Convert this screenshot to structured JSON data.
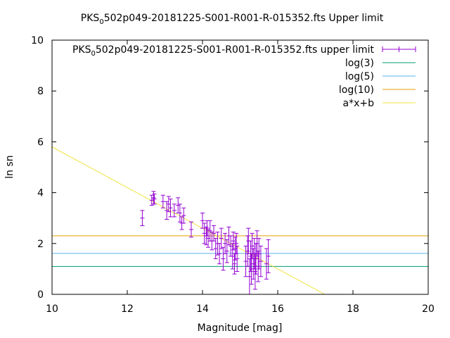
{
  "chart_data": {
    "type": "scatter",
    "title": {
      "main": "PKS",
      "sub": "0",
      "rest": "502p049-20181225-S001-R001-R-015352.fts Upper limit"
    },
    "xlabel": "Magnitude [mag]",
    "ylabel": "ln sn",
    "xlim": [
      10,
      20
    ],
    "ylim": [
      0,
      10
    ],
    "xticks": [
      "10",
      "12",
      "14",
      "16",
      "18",
      "20"
    ],
    "yticks": [
      "0",
      "2",
      "4",
      "6",
      "8",
      "10"
    ],
    "grid": false,
    "legend_position": "top-right",
    "colors": {
      "data": "#9400d3",
      "log3": "#009e73",
      "log5": "#56b4e9",
      "log10": "#e69f00",
      "fit": "#f0e442"
    },
    "series": [
      {
        "name": "upper limit",
        "legend": {
          "main": "PKS",
          "sub": "0",
          "rest": "502p049-20181225-S001-R001-R-015352.fts upper limit"
        },
        "kind": "errorbars",
        "points": [
          [
            12.4,
            3.0,
            0.3
          ],
          [
            12.65,
            3.7,
            0.2
          ],
          [
            12.7,
            3.8,
            0.25
          ],
          [
            12.72,
            3.75,
            0.2
          ],
          [
            12.95,
            3.65,
            0.25
          ],
          [
            13.05,
            3.3,
            0.35
          ],
          [
            13.1,
            3.55,
            0.3
          ],
          [
            13.15,
            3.4,
            0.35
          ],
          [
            13.25,
            3.3,
            0.25
          ],
          [
            13.35,
            3.5,
            0.3
          ],
          [
            13.4,
            3.2,
            0.35
          ],
          [
            13.45,
            2.8,
            0.25
          ],
          [
            13.5,
            3.1,
            0.3
          ],
          [
            13.7,
            2.55,
            0.3
          ],
          [
            14.0,
            2.9,
            0.3
          ],
          [
            14.05,
            2.4,
            0.4
          ],
          [
            14.1,
            2.3,
            0.35
          ],
          [
            14.12,
            2.6,
            0.3
          ],
          [
            14.15,
            2.2,
            0.35
          ],
          [
            14.2,
            2.5,
            0.4
          ],
          [
            14.25,
            2.1,
            0.35
          ],
          [
            14.3,
            2.4,
            0.3
          ],
          [
            14.35,
            1.8,
            0.4
          ],
          [
            14.4,
            2.0,
            0.45
          ],
          [
            14.45,
            1.6,
            0.4
          ],
          [
            14.5,
            2.2,
            0.4
          ],
          [
            14.55,
            1.4,
            0.45
          ],
          [
            14.6,
            2.0,
            0.4
          ],
          [
            14.65,
            1.7,
            0.45
          ],
          [
            14.7,
            2.3,
            0.35
          ],
          [
            14.75,
            1.9,
            0.4
          ],
          [
            14.8,
            1.5,
            0.5
          ],
          [
            14.82,
            2.1,
            0.35
          ],
          [
            14.85,
            1.2,
            0.4
          ],
          [
            14.87,
            1.8,
            0.45
          ],
          [
            14.9,
            2.0,
            0.4
          ],
          [
            14.92,
            1.4,
            0.5
          ],
          [
            15.15,
            1.3,
            0.6
          ],
          [
            15.2,
            1.7,
            0.6
          ],
          [
            15.22,
            2.1,
            0.5
          ],
          [
            15.25,
            0.7,
            0.7
          ],
          [
            15.28,
            1.5,
            0.6
          ],
          [
            15.3,
            1.0,
            0.6
          ],
          [
            15.32,
            1.9,
            0.5
          ],
          [
            15.35,
            1.2,
            0.6
          ],
          [
            15.38,
            1.6,
            0.6
          ],
          [
            15.4,
            0.9,
            0.7
          ],
          [
            15.42,
            1.4,
            0.6
          ],
          [
            15.45,
            2.0,
            0.5
          ],
          [
            15.48,
            1.1,
            0.6
          ],
          [
            15.5,
            1.6,
            0.6
          ],
          [
            15.55,
            1.3,
            0.6
          ],
          [
            15.7,
            1.2,
            0.6
          ],
          [
            15.75,
            1.5,
            0.65
          ]
        ]
      },
      {
        "name": "log(3)",
        "kind": "hline",
        "y": 1.0986
      },
      {
        "name": "log(5)",
        "kind": "hline",
        "y": 1.6094
      },
      {
        "name": "log(10)",
        "kind": "hline",
        "y": 2.3026
      },
      {
        "name": "a*x+b",
        "kind": "line",
        "slope": -0.8,
        "intercept": 13.8
      }
    ]
  }
}
